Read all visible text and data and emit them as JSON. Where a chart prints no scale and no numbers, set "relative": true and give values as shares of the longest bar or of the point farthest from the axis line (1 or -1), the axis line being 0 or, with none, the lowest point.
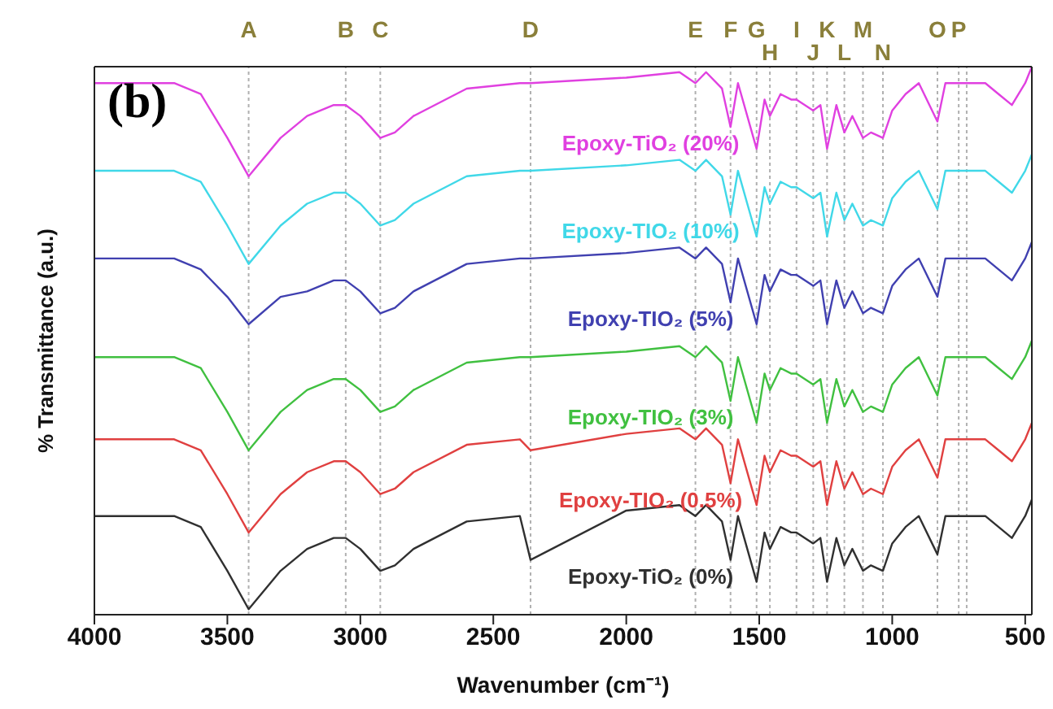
{
  "chart_data": {
    "type": "line",
    "relative": true,
    "xlabel": "Wavenumber (cm⁻¹)",
    "ylabel": "% Transmittance (a.u.)",
    "annotations": [
      "(b)"
    ],
    "x": [
      4000,
      3800,
      3700,
      3600,
      3500,
      3420,
      3300,
      3200,
      3100,
      3055,
      3000,
      2925,
      2870,
      2800,
      2600,
      2400,
      2360,
      2000,
      1800,
      1740,
      1700,
      1640,
      1608,
      1580,
      1510,
      1480,
      1460,
      1420,
      1380,
      1360,
      1297,
      1270,
      1245,
      1210,
      1180,
      1150,
      1110,
      1080,
      1035,
      1000,
      950,
      900,
      830,
      800,
      750,
      720,
      650,
      600,
      550,
      500,
      475
    ],
    "xlim": [
      4000,
      475
    ],
    "xticks": [
      4000,
      3500,
      3000,
      2500,
      2000,
      1500,
      1000,
      500
    ],
    "series": [
      {
        "name": "Epoxy-TiO₂ (20%)",
        "color": "#e040e0",
        "values": [
          0.97,
          0.97,
          0.97,
          0.95,
          0.87,
          0.8,
          0.87,
          0.91,
          0.93,
          0.93,
          0.91,
          0.87,
          0.88,
          0.91,
          0.96,
          0.97,
          0.97,
          0.98,
          0.99,
          0.97,
          0.99,
          0.96,
          0.89,
          0.97,
          0.85,
          0.94,
          0.91,
          0.95,
          0.94,
          0.94,
          0.92,
          0.93,
          0.85,
          0.93,
          0.88,
          0.91,
          0.87,
          0.88,
          0.87,
          0.92,
          0.95,
          0.97,
          0.9,
          0.97,
          0.97,
          0.97,
          0.97,
          0.95,
          0.93,
          0.97,
          1.0
        ]
      },
      {
        "name": "Epoxy-TIO₂ (10%)",
        "color": "#40d8e8",
        "values": [
          0.81,
          0.81,
          0.81,
          0.79,
          0.71,
          0.64,
          0.71,
          0.75,
          0.77,
          0.77,
          0.75,
          0.71,
          0.72,
          0.75,
          0.8,
          0.81,
          0.81,
          0.82,
          0.83,
          0.81,
          0.83,
          0.8,
          0.73,
          0.81,
          0.69,
          0.78,
          0.75,
          0.79,
          0.78,
          0.78,
          0.76,
          0.77,
          0.69,
          0.77,
          0.72,
          0.75,
          0.71,
          0.72,
          0.71,
          0.76,
          0.79,
          0.81,
          0.74,
          0.81,
          0.81,
          0.81,
          0.81,
          0.79,
          0.77,
          0.81,
          0.84
        ]
      },
      {
        "name": "Epoxy-TIO₂ (5%)",
        "color": "#4040b0",
        "values": [
          0.65,
          0.65,
          0.65,
          0.63,
          0.58,
          0.53,
          0.58,
          0.59,
          0.61,
          0.61,
          0.59,
          0.55,
          0.56,
          0.59,
          0.64,
          0.65,
          0.65,
          0.66,
          0.67,
          0.65,
          0.67,
          0.64,
          0.57,
          0.65,
          0.53,
          0.62,
          0.59,
          0.63,
          0.62,
          0.62,
          0.6,
          0.61,
          0.53,
          0.61,
          0.56,
          0.59,
          0.55,
          0.56,
          0.55,
          0.6,
          0.63,
          0.65,
          0.58,
          0.65,
          0.65,
          0.65,
          0.65,
          0.63,
          0.61,
          0.65,
          0.68
        ]
      },
      {
        "name": "Epoxy-TIO₂ (3%)",
        "color": "#40c040",
        "values": [
          0.47,
          0.47,
          0.47,
          0.45,
          0.37,
          0.3,
          0.37,
          0.41,
          0.43,
          0.43,
          0.41,
          0.37,
          0.38,
          0.41,
          0.46,
          0.47,
          0.47,
          0.48,
          0.49,
          0.47,
          0.49,
          0.46,
          0.39,
          0.47,
          0.35,
          0.44,
          0.41,
          0.45,
          0.44,
          0.44,
          0.42,
          0.43,
          0.35,
          0.43,
          0.38,
          0.41,
          0.37,
          0.38,
          0.37,
          0.42,
          0.45,
          0.47,
          0.4,
          0.47,
          0.47,
          0.47,
          0.47,
          0.45,
          0.43,
          0.47,
          0.5
        ]
      },
      {
        "name": "Epoxy-TIO₂ (0.5%)",
        "color": "#e04040",
        "values": [
          0.32,
          0.32,
          0.32,
          0.3,
          0.22,
          0.15,
          0.22,
          0.26,
          0.28,
          0.28,
          0.26,
          0.22,
          0.23,
          0.26,
          0.31,
          0.32,
          0.3,
          0.33,
          0.34,
          0.32,
          0.34,
          0.31,
          0.24,
          0.32,
          0.2,
          0.29,
          0.26,
          0.3,
          0.29,
          0.29,
          0.27,
          0.28,
          0.2,
          0.28,
          0.23,
          0.26,
          0.22,
          0.23,
          0.22,
          0.27,
          0.3,
          0.32,
          0.25,
          0.32,
          0.32,
          0.32,
          0.32,
          0.3,
          0.28,
          0.32,
          0.35
        ]
      },
      {
        "name": "Epoxy-TiO₂ (0%)",
        "color": "#303030",
        "values": [
          0.18,
          0.18,
          0.18,
          0.16,
          0.08,
          0.01,
          0.08,
          0.12,
          0.14,
          0.14,
          0.12,
          0.08,
          0.09,
          0.12,
          0.17,
          0.18,
          0.1,
          0.19,
          0.2,
          0.18,
          0.2,
          0.17,
          0.1,
          0.18,
          0.06,
          0.15,
          0.12,
          0.16,
          0.15,
          0.15,
          0.13,
          0.14,
          0.06,
          0.14,
          0.09,
          0.12,
          0.08,
          0.09,
          0.08,
          0.13,
          0.16,
          0.18,
          0.11,
          0.18,
          0.18,
          0.18,
          0.18,
          0.16,
          0.14,
          0.18,
          0.21
        ]
      }
    ],
    "ref_lines": [
      {
        "axis": "x",
        "value": 3420,
        "label": "A"
      },
      {
        "axis": "x",
        "value": 3055,
        "label": "B"
      },
      {
        "axis": "x",
        "value": 2925,
        "label": "C"
      },
      {
        "axis": "x",
        "value": 2360,
        "label": "D"
      },
      {
        "axis": "x",
        "value": 1740,
        "label": "E"
      },
      {
        "axis": "x",
        "value": 1608,
        "label": "F"
      },
      {
        "axis": "x",
        "value": 1510,
        "label": "G"
      },
      {
        "axis": "x",
        "value": 1460,
        "label": "H"
      },
      {
        "axis": "x",
        "value": 1360,
        "label": "I"
      },
      {
        "axis": "x",
        "value": 1297,
        "label": "J"
      },
      {
        "axis": "x",
        "value": 1245,
        "label": "K"
      },
      {
        "axis": "x",
        "value": 1180,
        "label": "L"
      },
      {
        "axis": "x",
        "value": 1110,
        "label": "M"
      },
      {
        "axis": "x",
        "value": 1035,
        "label": "N"
      },
      {
        "axis": "x",
        "value": 830,
        "label": "O"
      },
      {
        "axis": "x",
        "value": 750,
        "label": "P"
      },
      {
        "axis": "x",
        "value": 720,
        "label": null
      }
    ]
  }
}
